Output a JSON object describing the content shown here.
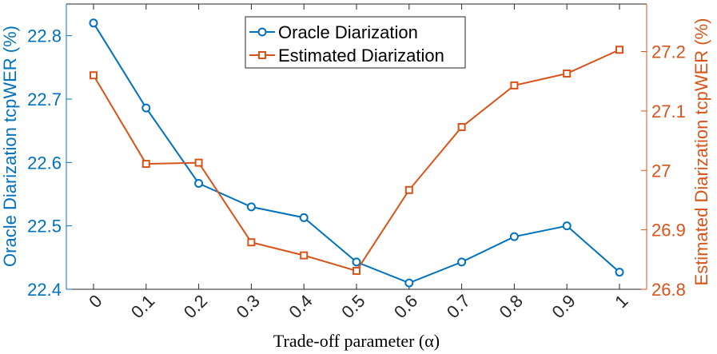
{
  "chart_data": {
    "type": "line",
    "xlabel": "Trade-off parameter (α)",
    "x": [
      0,
      0.1,
      0.2,
      0.3,
      0.4,
      0.5,
      0.6,
      0.7,
      0.8,
      0.9,
      1
    ],
    "x_tick_labels": [
      "0",
      "0.1",
      "0.2",
      "0.3",
      "0.4",
      "0.5",
      "0.6",
      "0.7",
      "0.8",
      "0.9",
      "1"
    ],
    "y_left": {
      "label": "Oracle Diarization tcpWER (%)",
      "lim": [
        22.4,
        22.85
      ],
      "ticks": [
        22.4,
        22.5,
        22.6,
        22.7,
        22.8
      ],
      "tick_labels": [
        "22.4",
        "22.5",
        "22.6",
        "22.7",
        "22.8"
      ]
    },
    "y_right": {
      "label": "Estimated Diarization tcpWER (%)",
      "lim": [
        26.8,
        27.28
      ],
      "ticks": [
        26.8,
        26.9,
        27.0,
        27.1,
        27.2
      ],
      "tick_labels": [
        "26.8",
        "26.9",
        "27",
        "27.1",
        "27.2"
      ]
    },
    "series": [
      {
        "name": "Oracle Diarization",
        "axis": "left",
        "marker": "circle",
        "color": "#0072BD",
        "values": [
          22.82,
          22.686,
          22.567,
          22.53,
          22.513,
          22.443,
          22.41,
          22.443,
          22.483,
          22.5,
          22.427
        ]
      },
      {
        "name": "Estimated Diarization",
        "axis": "right",
        "marker": "square",
        "color": "#D95319",
        "values": [
          27.16,
          27.011,
          27.013,
          26.879,
          26.857,
          26.831,
          26.967,
          27.073,
          27.143,
          27.163,
          27.203
        ]
      }
    ],
    "legend": [
      "Oracle Diarization",
      "Estimated Diarization"
    ],
    "legend_position": "top-center",
    "grid": false
  }
}
